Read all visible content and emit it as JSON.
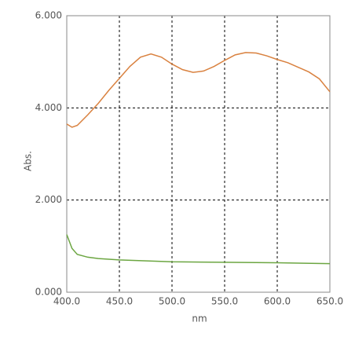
{
  "chart_data": {
    "type": "line",
    "xlabel": "nm",
    "ylabel": "Abs.",
    "xlim": [
      400,
      650
    ],
    "ylim": [
      0,
      6
    ],
    "xticks": [
      {
        "value": 400,
        "label": "400.0"
      },
      {
        "value": 450,
        "label": "450.0"
      },
      {
        "value": 500,
        "label": "500.0"
      },
      {
        "value": 550,
        "label": "550.0"
      },
      {
        "value": 600,
        "label": "600.0"
      },
      {
        "value": 650,
        "label": "650.0"
      }
    ],
    "yticks": [
      {
        "value": 0,
        "label": "0.000"
      },
      {
        "value": 2,
        "label": "2.000"
      },
      {
        "value": 4,
        "label": "4.000"
      },
      {
        "value": 6,
        "label": "6.000"
      }
    ],
    "grid": true,
    "series": [
      {
        "color": "#d9813f",
        "x": [
          400,
          405,
          410,
          420,
          430,
          440,
          450,
          460,
          470,
          480,
          490,
          500,
          510,
          520,
          530,
          540,
          550,
          560,
          570,
          580,
          590,
          600,
          610,
          620,
          630,
          640,
          650
        ],
        "values": [
          3.65,
          3.58,
          3.62,
          3.85,
          4.1,
          4.38,
          4.64,
          4.9,
          5.1,
          5.17,
          5.1,
          4.95,
          4.83,
          4.77,
          4.8,
          4.9,
          5.03,
          5.15,
          5.2,
          5.19,
          5.13,
          5.05,
          4.98,
          4.88,
          4.78,
          4.63,
          4.35
        ]
      },
      {
        "color": "#6ca642",
        "x": [
          400,
          405,
          410,
          420,
          430,
          450,
          500,
          550,
          600,
          650
        ],
        "values": [
          1.25,
          0.95,
          0.82,
          0.76,
          0.73,
          0.7,
          0.66,
          0.65,
          0.64,
          0.62
        ]
      }
    ]
  }
}
